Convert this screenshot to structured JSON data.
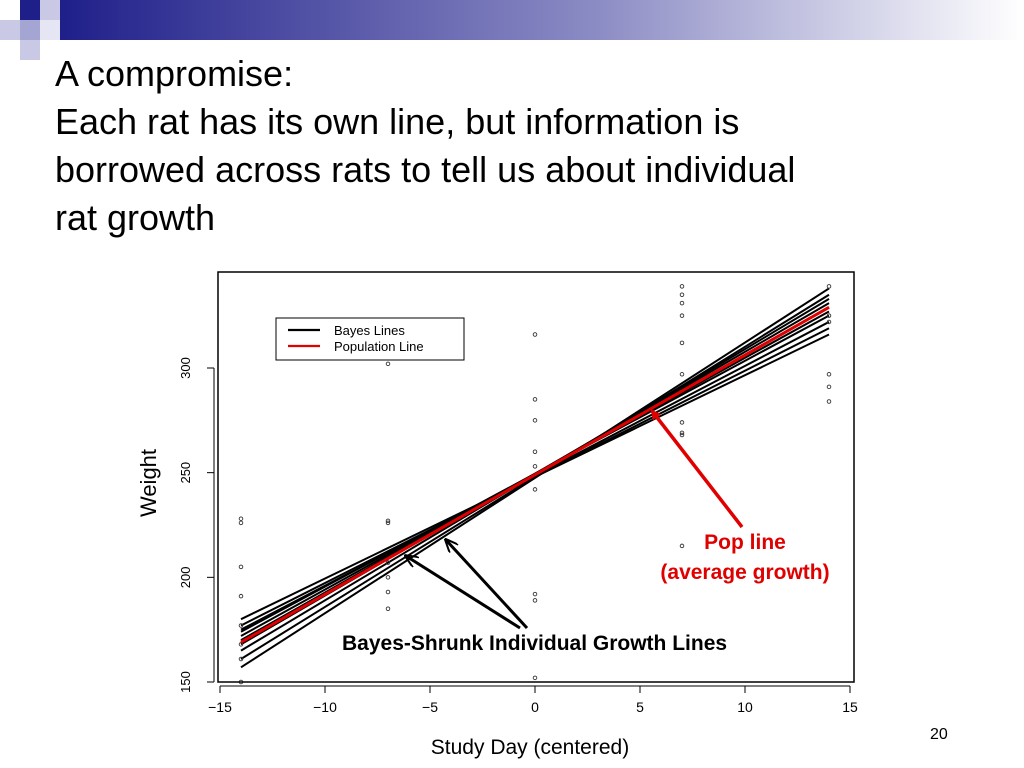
{
  "slide": {
    "title_lines": [
      "A compromise:",
      "Each rat has its own line, but information is",
      "borrowed across rats to tell us about individual",
      "rat growth"
    ],
    "page_number": "20",
    "accent_color": "#1f1f8a"
  },
  "annotations": {
    "pop_line_1": "Pop line",
    "pop_line_2": "(average growth)",
    "bayes_shrunk": "Bayes-Shrunk Individual Growth Lines"
  },
  "chart_data": {
    "type": "line",
    "xlabel": "Study Day (centered)",
    "ylabel": "Weight",
    "xlim": [
      -15,
      15
    ],
    "ylim": [
      150,
      345
    ],
    "xticks": [
      -15,
      -10,
      -5,
      0,
      5,
      10,
      15
    ],
    "yticks": [
      150,
      200,
      250,
      300
    ],
    "legend": {
      "placement": "top-left",
      "entries": [
        {
          "label": "Bayes Lines",
          "color": "#000000"
        },
        {
          "label": "Population Line",
          "color": "#e00000"
        }
      ]
    },
    "population_line": {
      "name": "Population Line",
      "x": [
        -14,
        14
      ],
      "y": [
        169,
        329
      ],
      "color": "#e00000"
    },
    "bayes_lines": [
      {
        "x": [
          -14,
          14
        ],
        "y": [
          157,
          338
        ]
      },
      {
        "x": [
          -14,
          14
        ],
        "y": [
          161,
          335
        ]
      },
      {
        "x": [
          -14,
          14
        ],
        "y": [
          165,
          333
        ]
      },
      {
        "x": [
          -14,
          14
        ],
        "y": [
          168,
          331
        ]
      },
      {
        "x": [
          -14,
          14
        ],
        "y": [
          170,
          329
        ]
      },
      {
        "x": [
          -14,
          14
        ],
        "y": [
          172,
          327
        ]
      },
      {
        "x": [
          -14,
          14
        ],
        "y": [
          174,
          325
        ]
      },
      {
        "x": [
          -14,
          14
        ],
        "y": [
          175,
          322
        ]
      },
      {
        "x": [
          -14,
          14
        ],
        "y": [
          177,
          319
        ]
      },
      {
        "x": [
          -14,
          14
        ],
        "y": [
          180,
          316
        ]
      }
    ],
    "points": [
      {
        "x": -14,
        "y": 226
      },
      {
        "x": -14,
        "y": 228
      },
      {
        "x": -14,
        "y": 205
      },
      {
        "x": -14,
        "y": 191
      },
      {
        "x": -14,
        "y": 177
      },
      {
        "x": -14,
        "y": 168
      },
      {
        "x": -14,
        "y": 161
      },
      {
        "x": -14,
        "y": 150
      },
      {
        "x": -7,
        "y": 302
      },
      {
        "x": -7,
        "y": 226
      },
      {
        "x": -7,
        "y": 227
      },
      {
        "x": -7,
        "y": 207
      },
      {
        "x": -7,
        "y": 200
      },
      {
        "x": -7,
        "y": 193
      },
      {
        "x": -7,
        "y": 185
      },
      {
        "x": 0,
        "y": 316
      },
      {
        "x": 0,
        "y": 285
      },
      {
        "x": 0,
        "y": 275
      },
      {
        "x": 0,
        "y": 260
      },
      {
        "x": 0,
        "y": 253
      },
      {
        "x": 0,
        "y": 242
      },
      {
        "x": 0,
        "y": 192
      },
      {
        "x": 0,
        "y": 189
      },
      {
        "x": 0,
        "y": 152
      },
      {
        "x": 7,
        "y": 339
      },
      {
        "x": 7,
        "y": 335
      },
      {
        "x": 7,
        "y": 331
      },
      {
        "x": 7,
        "y": 325
      },
      {
        "x": 7,
        "y": 312
      },
      {
        "x": 7,
        "y": 297
      },
      {
        "x": 7,
        "y": 274
      },
      {
        "x": 7,
        "y": 269
      },
      {
        "x": 7,
        "y": 268
      },
      {
        "x": 7,
        "y": 215
      },
      {
        "x": 14,
        "y": 339
      },
      {
        "x": 14,
        "y": 325
      },
      {
        "x": 14,
        "y": 322
      },
      {
        "x": 14,
        "y": 297
      },
      {
        "x": 14,
        "y": 291
      },
      {
        "x": 14,
        "y": 284
      }
    ]
  }
}
